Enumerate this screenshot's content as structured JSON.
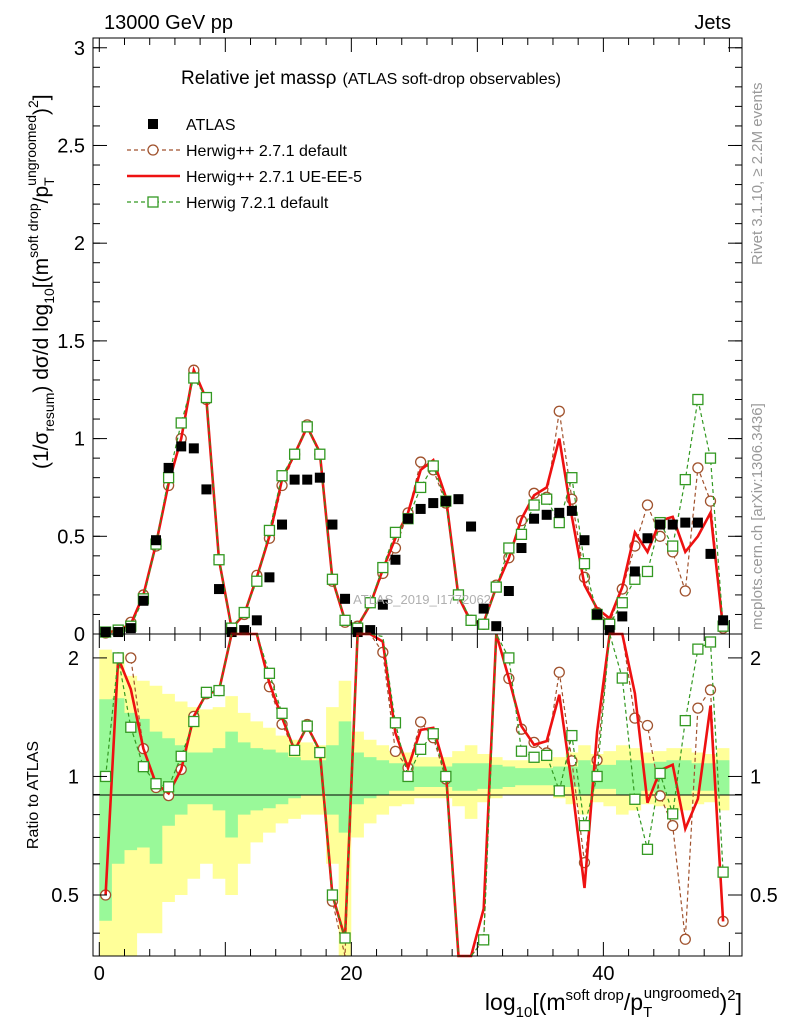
{
  "header": {
    "left": "13000 GeV pp",
    "right": "Jets"
  },
  "side_text": {
    "rivet": "Rivet 3.1.10, ≥ 2.2M events",
    "mcplots": "mcplots.cern.ch [arXiv:1306.3436]"
  },
  "watermark": "ATLAS_2019_I1772062",
  "colors": {
    "data": "#000000",
    "herwig_default": "#a0522d",
    "herwig_ueee5": "#ee1111",
    "herwig72": "#339922",
    "band_inner": "#99f999",
    "band_outer": "#ffff99"
  },
  "chart_data": [
    {
      "type": "line",
      "title": "Relative jet massρ",
      "subtitle": "(ATLAS soft-drop observables)",
      "ylabel": "(1/σresum) dσ/d log10[(m soft drop/pT ungroomed)2]",
      "ylabel_parts": {
        "main": "(1/σ",
        "sub1": "resum",
        "mid": ") dσ/d log",
        "sub2": "10",
        "mid2": "[(m",
        "sup1": "soft drop",
        "mid3": "/p",
        "sub3": "T",
        "sup2": "ungroomed",
        "end": ")",
        "sup3": "2",
        "close": "]"
      },
      "xlim": [
        -0.5,
        51
      ],
      "ylim": [
        0,
        3.05
      ],
      "y_ticks": [
        0,
        0.5,
        1,
        1.5,
        2,
        2.5,
        3
      ],
      "y_tick_labels": [
        "0",
        "0.5",
        "1",
        "1.5",
        "2",
        "2.5",
        "3"
      ],
      "legend": [
        {
          "name": "ATLAS",
          "style": "square"
        },
        {
          "name": "Herwig++ 2.7.1 default",
          "style": "circle-dashed"
        },
        {
          "name": "Herwig++ 2.7.1 UE-EE-5",
          "style": "solid"
        },
        {
          "name": "Herwig 7.2.1 default",
          "style": "square-dashed"
        }
      ],
      "series": [
        {
          "name": "ATLAS",
          "x": [
            0.5,
            1.5,
            2.5,
            3.5,
            4.5,
            5.5,
            6.5,
            7.5,
            8.5,
            9.5,
            10.5,
            11.5,
            12.5,
            13.5,
            14.5,
            15.5,
            16.5,
            17.5,
            18.5,
            19.5,
            20.5,
            21.5,
            22.5,
            23.5,
            24.5,
            25.5,
            26.5,
            27.5,
            28.5,
            29.5,
            30.5,
            31.5,
            32.5,
            33.5,
            34.5,
            35.5,
            36.5,
            37.5,
            38.5,
            39.5,
            40.5,
            41.5,
            42.5,
            43.5,
            44.5,
            45.5,
            46.5,
            47.5,
            48.5,
            49.5
          ],
          "values": [
            0.01,
            0.01,
            0.03,
            0.17,
            0.48,
            0.85,
            0.96,
            0.95,
            0.74,
            0.23,
            0.01,
            0.02,
            0.07,
            0.29,
            0.56,
            0.79,
            0.79,
            0.8,
            0.56,
            0.18,
            0.01,
            0.02,
            0.15,
            0.38,
            0.59,
            0.64,
            0.67,
            0.68,
            0.69,
            0.55,
            0.13,
            0.04,
            0.22,
            0.44,
            0.59,
            0.61,
            0.62,
            0.63,
            0.48,
            0.1,
            0.02,
            0.09,
            0.32,
            0.49,
            0.56,
            0.56,
            0.57,
            0.57,
            0.41,
            0.07
          ]
        },
        {
          "name": "Herwig++ 2.7.1 default",
          "x": [
            0.5,
            1.5,
            2.5,
            3.5,
            4.5,
            5.5,
            6.5,
            7.5,
            8.5,
            9.5,
            10.5,
            11.5,
            12.5,
            13.5,
            14.5,
            15.5,
            16.5,
            17.5,
            18.5,
            19.5,
            20.5,
            21.5,
            22.5,
            23.5,
            24.5,
            25.5,
            26.5,
            27.5,
            28.5,
            29.5,
            30.5,
            31.5,
            32.5,
            33.5,
            34.5,
            35.5,
            36.5,
            37.5,
            38.5,
            39.5,
            40.5,
            41.5,
            42.5,
            43.5,
            44.5,
            45.5,
            46.5,
            47.5,
            48.5,
            49.5
          ],
          "values": [
            0.005,
            0.02,
            0.06,
            0.2,
            0.45,
            0.76,
            1.0,
            1.35,
            1.2,
            0.38,
            0.03,
            0.1,
            0.3,
            0.49,
            0.76,
            0.92,
            1.07,
            0.92,
            0.27,
            0.06,
            0.04,
            0.16,
            0.31,
            0.44,
            0.62,
            0.88,
            0.84,
            0.67,
            0.2,
            0.07,
            0.05,
            0.25,
            0.39,
            0.58,
            0.72,
            0.7,
            1.14,
            0.69,
            0.29,
            0.11,
            0.06,
            0.23,
            0.45,
            0.66,
            0.5,
            0.42,
            0.22,
            0.85,
            0.68,
            0.03
          ]
        },
        {
          "name": "Herwig++ 2.7.1 UE-EE-5",
          "x": [
            0.5,
            1.5,
            2.5,
            3.5,
            4.5,
            5.5,
            6.5,
            7.5,
            8.5,
            9.5,
            10.5,
            11.5,
            12.5,
            13.5,
            14.5,
            15.5,
            16.5,
            17.5,
            18.5,
            19.5,
            20.5,
            21.5,
            22.5,
            23.5,
            24.5,
            25.5,
            26.5,
            27.5,
            28.5,
            29.5,
            30.5,
            31.5,
            32.5,
            33.5,
            34.5,
            35.5,
            36.5,
            37.5,
            38.5,
            39.5,
            40.5,
            41.5,
            42.5,
            43.5,
            44.5,
            45.5,
            46.5,
            47.5,
            48.5,
            49.5
          ],
          "values": [
            0.005,
            0.02,
            0.05,
            0.2,
            0.46,
            0.77,
            1.0,
            1.35,
            1.2,
            0.38,
            0.03,
            0.1,
            0.29,
            0.5,
            0.79,
            0.92,
            1.06,
            0.93,
            0.28,
            0.07,
            0.04,
            0.15,
            0.33,
            0.49,
            0.62,
            0.84,
            0.89,
            0.7,
            0.19,
            0.06,
            0.06,
            0.24,
            0.39,
            0.59,
            0.71,
            0.75,
            1.0,
            0.6,
            0.25,
            0.13,
            0.08,
            0.24,
            0.52,
            0.42,
            0.58,
            0.6,
            0.42,
            0.5,
            0.62,
            0.03
          ]
        },
        {
          "name": "Herwig 7.2.1 default",
          "x": [
            0.5,
            1.5,
            2.5,
            3.5,
            4.5,
            5.5,
            6.5,
            7.5,
            8.5,
            9.5,
            10.5,
            11.5,
            12.5,
            13.5,
            14.5,
            15.5,
            16.5,
            17.5,
            18.5,
            19.5,
            20.5,
            21.5,
            22.5,
            23.5,
            24.5,
            25.5,
            26.5,
            27.5,
            28.5,
            29.5,
            30.5,
            31.5,
            32.5,
            33.5,
            34.5,
            35.5,
            36.5,
            37.5,
            38.5,
            39.5,
            40.5,
            41.5,
            42.5,
            43.5,
            44.5,
            45.5,
            46.5,
            47.5,
            48.5,
            49.5
          ],
          "values": [
            0.01,
            0.02,
            0.04,
            0.18,
            0.46,
            0.8,
            1.08,
            1.31,
            1.21,
            0.38,
            0.03,
            0.11,
            0.27,
            0.53,
            0.81,
            0.92,
            1.06,
            0.92,
            0.28,
            0.07,
            0.03,
            0.16,
            0.34,
            0.52,
            0.59,
            0.75,
            0.86,
            0.68,
            0.2,
            0.07,
            0.05,
            0.24,
            0.44,
            0.51,
            0.66,
            0.69,
            0.57,
            0.8,
            0.36,
            0.1,
            0.05,
            0.16,
            0.28,
            0.32,
            0.57,
            0.45,
            0.79,
            1.2,
            0.9,
            0.04
          ]
        }
      ]
    },
    {
      "type": "line",
      "ylabel": "Ratio to ATLAS",
      "xlabel": "log10[(m soft drop/pT ungroomed)2]",
      "xlabel_parts": {
        "main": "log",
        "sub1": "10",
        "mid": "[(m",
        "sup1": "soft drop",
        "mid2": "/p",
        "sub2": "T",
        "sup2": "ungroomed",
        "end": ")",
        "sup3": "2",
        "close": "]"
      },
      "xlim": [
        -0.5,
        51
      ],
      "ylim": [
        0.35,
        2.3
      ],
      "y_ticks": [
        0.5,
        1,
        2
      ],
      "y_tick_labels": [
        "0.5",
        "1",
        "2"
      ],
      "x_ticks": [
        0,
        20,
        40
      ],
      "x_tick_labels": [
        "0",
        "20",
        "40"
      ],
      "bands": {
        "x": [
          0.5,
          1.5,
          2.5,
          3.5,
          4.5,
          5.5,
          6.5,
          7.5,
          8.5,
          9.5,
          10.5,
          11.5,
          12.5,
          13.5,
          14.5,
          15.5,
          16.5,
          17.5,
          18.5,
          19.5,
          20.5,
          21.5,
          22.5,
          23.5,
          24.5,
          25.5,
          26.5,
          27.5,
          28.5,
          29.5,
          30.5,
          31.5,
          32.5,
          33.5,
          34.5,
          35.5,
          36.5,
          37.5,
          38.5,
          39.5,
          40.5,
          41.5,
          42.5,
          43.5,
          44.5,
          45.5,
          46.5,
          47.5,
          48.5,
          49.5
        ],
        "inner_low": [
          0.43,
          0.6,
          0.65,
          0.66,
          0.6,
          0.75,
          0.8,
          0.85,
          0.85,
          0.82,
          0.7,
          0.8,
          0.82,
          0.83,
          0.85,
          0.88,
          0.9,
          0.9,
          0.8,
          0.72,
          0.85,
          0.88,
          0.9,
          0.92,
          0.92,
          0.94,
          0.94,
          0.94,
          0.92,
          0.92,
          0.93,
          0.93,
          0.94,
          0.95,
          0.95,
          0.95,
          0.94,
          0.94,
          0.9,
          0.93,
          0.93,
          0.9,
          0.9,
          0.92,
          0.91,
          0.9,
          0.9,
          0.92,
          0.92,
          0.9
        ],
        "inner_high": [
          1.57,
          1.58,
          1.45,
          1.4,
          1.3,
          1.25,
          1.2,
          1.15,
          1.15,
          1.18,
          1.3,
          1.22,
          1.18,
          1.17,
          1.15,
          1.12,
          1.1,
          1.1,
          1.2,
          1.38,
          1.15,
          1.12,
          1.1,
          1.08,
          1.08,
          1.06,
          1.06,
          1.06,
          1.08,
          1.08,
          1.08,
          1.07,
          1.06,
          1.05,
          1.05,
          1.05,
          1.06,
          1.06,
          1.1,
          1.07,
          1.07,
          1.1,
          1.1,
          1.08,
          1.09,
          1.1,
          1.1,
          1.08,
          1.08,
          1.1
        ],
        "outer_low": [
          0.35,
          0.35,
          0.35,
          0.4,
          0.4,
          0.48,
          0.5,
          0.55,
          0.6,
          0.55,
          0.5,
          0.6,
          0.68,
          0.72,
          0.76,
          0.78,
          0.8,
          0.8,
          0.6,
          0.35,
          0.7,
          0.76,
          0.8,
          0.84,
          0.85,
          0.88,
          0.88,
          0.88,
          0.84,
          0.78,
          0.86,
          0.88,
          0.9,
          0.9,
          0.9,
          0.9,
          0.88,
          0.85,
          0.8,
          0.86,
          0.84,
          0.8,
          0.82,
          0.85,
          0.84,
          0.82,
          0.82,
          0.85,
          0.86,
          0.82
        ],
        "outer_high": [
          2.1,
          2.05,
          1.8,
          1.75,
          1.7,
          1.62,
          1.55,
          1.5,
          1.48,
          1.5,
          1.6,
          1.45,
          1.38,
          1.33,
          1.27,
          1.24,
          1.22,
          1.2,
          1.5,
          1.75,
          1.3,
          1.24,
          1.2,
          1.16,
          1.15,
          1.12,
          1.12,
          1.12,
          1.16,
          1.2,
          1.14,
          1.12,
          1.1,
          1.1,
          1.1,
          1.1,
          1.12,
          1.15,
          1.2,
          1.14,
          1.16,
          1.2,
          1.18,
          1.15,
          1.16,
          1.18,
          1.18,
          1.15,
          1.14,
          1.18
        ]
      }
    }
  ]
}
